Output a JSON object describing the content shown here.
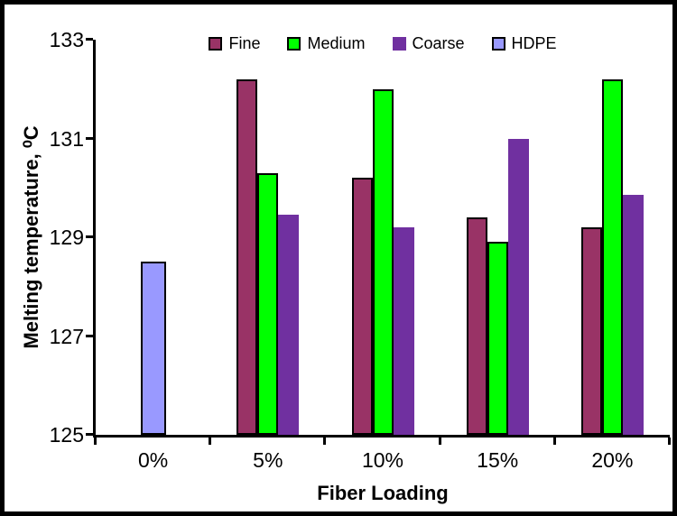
{
  "chart_data": {
    "type": "bar",
    "title": "",
    "xlabel": "Fiber Loading",
    "ylabel": "Melting temperature, ⁰C",
    "categories": [
      "0%",
      "5%",
      "10%",
      "15%",
      "20%"
    ],
    "series": [
      {
        "name": "Fine",
        "color": "#993366",
        "outlined": true,
        "values": [
          null,
          132.2,
          130.2,
          129.4,
          129.2
        ]
      },
      {
        "name": "Medium",
        "color": "#00FF00",
        "outlined": true,
        "values": [
          null,
          130.3,
          132.0,
          128.9,
          132.2
        ]
      },
      {
        "name": "Coarse",
        "color": "#7030A0",
        "outlined": false,
        "values": [
          null,
          129.45,
          129.2,
          131.0,
          129.85
        ]
      },
      {
        "name": "HDPE",
        "color": "#9999FF",
        "outlined": true,
        "values": [
          128.5,
          null,
          null,
          null,
          null
        ]
      }
    ],
    "ylim": [
      125,
      133
    ],
    "yticks": [
      "125",
      "127",
      "129",
      "131",
      "133"
    ],
    "legend_position": "top",
    "grid": false,
    "axis_color": "#000000",
    "outline_color": "#000000",
    "background": "#ffffff",
    "frame_color": "#000000"
  }
}
